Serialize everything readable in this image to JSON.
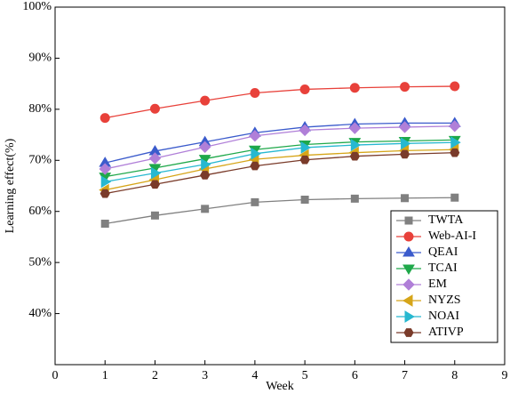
{
  "chart_data": {
    "type": "line",
    "x_label": "Week",
    "y_label": "Learning effect(%)",
    "x": [
      1,
      2,
      3,
      4,
      5,
      6,
      7,
      8
    ],
    "xlim": [
      0,
      9
    ],
    "xticks": [
      0,
      1,
      2,
      3,
      4,
      5,
      6,
      7,
      8,
      9
    ],
    "ylim": [
      30,
      100
    ],
    "yticks": [
      {
        "value": 40,
        "label": "40%"
      },
      {
        "value": 50,
        "label": "50%"
      },
      {
        "value": 60,
        "label": "60%"
      },
      {
        "value": 70,
        "label": "70%"
      },
      {
        "value": 80,
        "label": "80%"
      },
      {
        "value": 90,
        "label": "90%"
      },
      {
        "value": 100,
        "label": "100%"
      }
    ],
    "legend": "lower right",
    "series": [
      {
        "name": "TWTA",
        "color": "#808080",
        "marker": "square",
        "values": [
          57.6,
          59.2,
          60.5,
          61.8,
          62.3,
          62.5,
          62.6,
          62.7
        ]
      },
      {
        "name": "Web-AI-I",
        "color": "#e8413a",
        "marker": "circle",
        "values": [
          78.3,
          80.1,
          81.7,
          83.2,
          83.9,
          84.2,
          84.4,
          84.5
        ]
      },
      {
        "name": "QEAI",
        "color": "#3b5bcc",
        "marker": "triangle-up",
        "values": [
          69.5,
          71.8,
          73.6,
          75.4,
          76.5,
          77.1,
          77.3,
          77.3
        ]
      },
      {
        "name": "TCAI",
        "color": "#1fa84a",
        "marker": "triangle-down",
        "values": [
          66.8,
          68.5,
          70.3,
          72.1,
          73.1,
          73.6,
          73.8,
          74.0
        ]
      },
      {
        "name": "EM",
        "color": "#b07fd8",
        "marker": "diamond",
        "values": [
          68.3,
          70.4,
          72.6,
          74.8,
          75.9,
          76.3,
          76.5,
          76.7
        ]
      },
      {
        "name": "NYZS",
        "color": "#d6a519",
        "marker": "triangle-left",
        "values": [
          64.2,
          66.2,
          68.3,
          70.2,
          71.0,
          71.5,
          71.9,
          72.1
        ]
      },
      {
        "name": "NOAI",
        "color": "#27b8d0",
        "marker": "triangle-right",
        "values": [
          65.8,
          67.5,
          69.2,
          71.3,
          72.5,
          73.0,
          73.3,
          73.5
        ]
      },
      {
        "name": "ATIVP",
        "color": "#7a3b2a",
        "marker": "hexagon",
        "values": [
          63.5,
          65.3,
          67.1,
          68.9,
          70.1,
          70.8,
          71.2,
          71.5
        ]
      }
    ]
  }
}
